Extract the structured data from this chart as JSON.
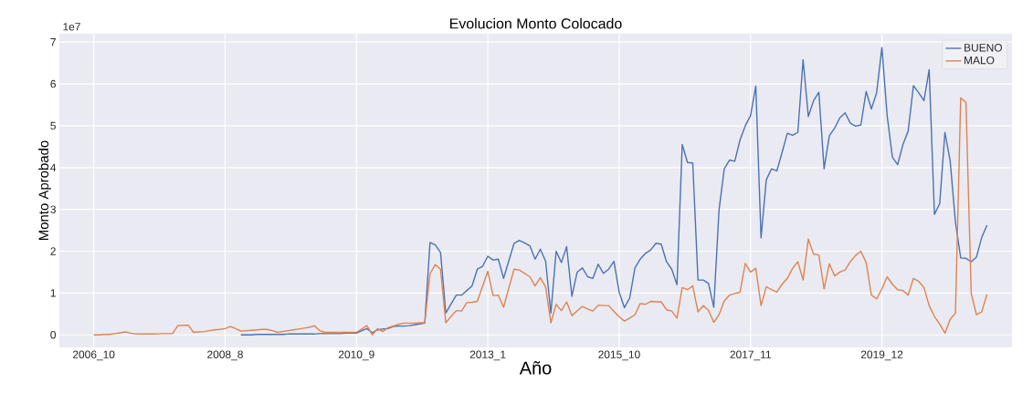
{
  "chart_data": {
    "type": "line",
    "title": "Evolucion Monto Colocado",
    "xlabel": "Año",
    "ylabel": "Monto Aprobado",
    "annotations": [
      "1e7"
    ],
    "categories": [
      "2006_10",
      null,
      null,
      null,
      null,
      null,
      null,
      null,
      null,
      null,
      null,
      null,
      null,
      null,
      null,
      null,
      null,
      null,
      null,
      null,
      null,
      null,
      null,
      null,
      null,
      "2008_8",
      null,
      null,
      null,
      null,
      null,
      null,
      null,
      null,
      null,
      null,
      null,
      null,
      null,
      null,
      null,
      null,
      null,
      null,
      null,
      null,
      null,
      null,
      null,
      null,
      "2010_9",
      null,
      null,
      null,
      null,
      null,
      null,
      null,
      null,
      null,
      null,
      null,
      null,
      null,
      null,
      null,
      null,
      null,
      null,
      null,
      null,
      null,
      null,
      null,
      null,
      "2013_1",
      null,
      null,
      null,
      null,
      null,
      null,
      null,
      null,
      null,
      null,
      null,
      null,
      null,
      null,
      null,
      null,
      null,
      null,
      null,
      null,
      null,
      null,
      null,
      null,
      "2015_10",
      null,
      null,
      null,
      null,
      null,
      null,
      null,
      null,
      null,
      null,
      null,
      null,
      null,
      null,
      null,
      null,
      null,
      null,
      null,
      null,
      null,
      null,
      null,
      null,
      "2017_11",
      null,
      null,
      null,
      null,
      null,
      null,
      null,
      null,
      null,
      null,
      null,
      null,
      null,
      null,
      null,
      null,
      null,
      null,
      null,
      null,
      null,
      null,
      null,
      null,
      "2019_12",
      null,
      null,
      null,
      null,
      null,
      null,
      null,
      null,
      null,
      null,
      null,
      null,
      null,
      null,
      null,
      null,
      null,
      null,
      null,
      null
    ],
    "ylim": [
      -0.3,
      7.2
    ],
    "yticks": [
      0,
      1,
      2,
      3,
      4,
      5,
      6,
      7
    ],
    "grid": true,
    "legend": "top right",
    "series": [
      {
        "name": "BUENO",
        "color": "#4c72b0",
        "values": [
          null,
          null,
          null,
          null,
          null,
          null,
          null,
          null,
          null,
          null,
          null,
          null,
          null,
          null,
          null,
          null,
          null,
          null,
          null,
          null,
          null,
          null,
          null,
          null,
          null,
          null,
          null,
          null,
          0,
          0,
          0,
          0.01,
          0.01,
          0.01,
          0.01,
          0.01,
          0.01,
          0.02,
          0.02,
          0.02,
          0.02,
          0.02,
          0.02,
          0.03,
          0.03,
          0.03,
          0.03,
          0.03,
          0.04,
          0.04,
          0.04,
          0.1,
          0.15,
          0.05,
          0.12,
          0.14,
          0.15,
          0.2,
          0.21,
          0.21,
          0.22,
          0.24,
          0.26,
          0.28,
          2.21,
          2.15,
          1.97,
          0.52,
          0.74,
          0.95,
          0.95,
          1.06,
          1.17,
          1.57,
          1.64,
          1.88,
          1.79,
          1.81,
          1.35,
          1.77,
          2.19,
          2.26,
          2.2,
          2.13,
          1.81,
          2.05,
          1.76,
          0.52,
          2.0,
          1.73,
          2.11,
          0.92,
          1.5,
          1.6,
          1.39,
          1.35,
          1.69,
          1.47,
          1.57,
          1.76,
          1.02,
          0.65,
          0.88,
          1.6,
          1.81,
          1.95,
          2.03,
          2.19,
          2.17,
          1.75,
          1.57,
          1.2,
          4.55,
          4.12,
          4.11,
          1.31,
          1.31,
          1.23,
          0.66,
          2.98,
          3.97,
          4.18,
          4.15,
          4.66,
          5.0,
          5.24,
          5.95,
          2.32,
          3.71,
          3.97,
          3.92,
          4.36,
          4.82,
          4.77,
          4.84,
          6.58,
          5.22,
          5.6,
          5.8,
          3.97,
          4.76,
          4.94,
          5.19,
          5.31,
          5.06,
          4.99,
          5.02,
          5.82,
          5.4,
          5.79,
          6.87,
          5.24,
          4.25,
          4.07,
          4.55,
          4.87,
          5.96,
          5.79,
          5.6,
          6.34,
          2.88,
          3.14,
          4.84,
          4.15,
          2.69,
          1.84,
          1.83,
          1.75,
          1.86,
          2.33,
          2.62
        ]
      },
      {
        "name": "MALO",
        "color": "#dd8452",
        "values": [
          0,
          0,
          0.01,
          0.01,
          0.03,
          0.05,
          0.07,
          0.04,
          0.02,
          0.02,
          0.02,
          0.02,
          0.02,
          0.03,
          0.03,
          0.03,
          0.22,
          0.23,
          0.23,
          0.06,
          0.07,
          0.08,
          0.1,
          0.12,
          0.13,
          0.15,
          0.2,
          0.15,
          0.09,
          0.1,
          0.11,
          0.12,
          0.13,
          0.13,
          0.1,
          0.06,
          0.08,
          0.1,
          0.12,
          0.14,
          0.16,
          0.18,
          0.22,
          0.1,
          0.06,
          0.06,
          0.06,
          0.06,
          0.06,
          0.06,
          0.06,
          0.14,
          0.22,
          0,
          0.15,
          0.08,
          0.17,
          0.21,
          0.25,
          0.28,
          0.28,
          0.28,
          0.29,
          0.29,
          1.46,
          1.68,
          1.57,
          0.29,
          0.44,
          0.58,
          0.57,
          0.77,
          0.78,
          0.8,
          1.16,
          1.52,
          0.94,
          0.95,
          0.66,
          1.12,
          1.57,
          1.55,
          1.47,
          1.39,
          1.17,
          1.37,
          1.14,
          0.29,
          0.73,
          0.58,
          0.79,
          0.46,
          0.57,
          0.68,
          0.62,
          0.57,
          0.71,
          0.7,
          0.7,
          0.56,
          0.43,
          0.33,
          0.4,
          0.48,
          0.75,
          0.73,
          0.8,
          0.79,
          0.79,
          0.6,
          0.57,
          0.4,
          1.13,
          1.08,
          1.17,
          0.55,
          0.7,
          0.59,
          0.3,
          0.48,
          0.81,
          0.95,
          0.99,
          1.02,
          1.71,
          1.5,
          1.59,
          0.7,
          1.15,
          1.08,
          1.02,
          1.21,
          1.35,
          1.59,
          1.75,
          1.31,
          2.29,
          1.93,
          1.91,
          1.1,
          1.7,
          1.41,
          1.5,
          1.55,
          1.75,
          1.9,
          2.0,
          1.73,
          0.95,
          0.86,
          1.1,
          1.39,
          1.21,
          1.08,
          1.06,
          0.95,
          1.35,
          1.28,
          1.13,
          0.7,
          0.44,
          0.26,
          0.04,
          0.37,
          0.52,
          5.67,
          5.56,
          0.99,
          0.48,
          0.55,
          0.97
        ]
      }
    ]
  }
}
